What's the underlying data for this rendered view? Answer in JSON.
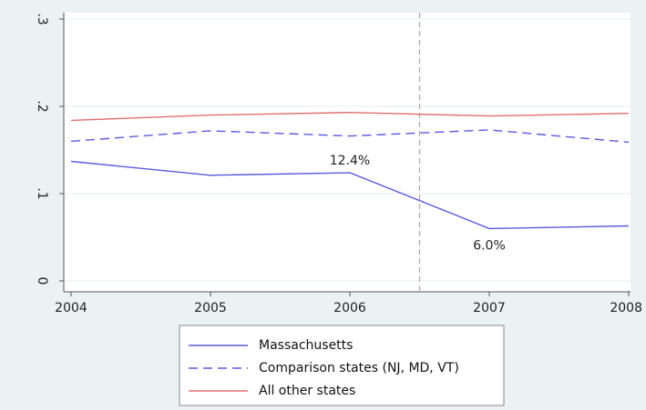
{
  "chart_data": {
    "type": "line",
    "title": "",
    "xlabel": "",
    "ylabel": "",
    "x": [
      2004,
      2005,
      2006,
      2007,
      2008
    ],
    "xlim": [
      2004,
      2008
    ],
    "ylim": [
      0,
      0.3
    ],
    "x_ticks": [
      "2004",
      "2005",
      "2006",
      "2007",
      "2008"
    ],
    "y_ticks": [
      {
        "value": 0,
        "label": "0"
      },
      {
        "value": 0.1,
        "label": ".1"
      },
      {
        "value": 0.2,
        "label": ".2"
      },
      {
        "value": 0.3,
        "label": ".3"
      }
    ],
    "grid": "horizontal",
    "reference_line": {
      "x": 2006.5,
      "style": "dashed"
    },
    "series": [
      {
        "name": "Massachusetts",
        "values": [
          0.137,
          0.121,
          0.124,
          0.06,
          0.063
        ],
        "color": "#5a5adf",
        "style": "solid"
      },
      {
        "name": "Comparison states (NJ, MD, VT)",
        "values": [
          0.16,
          0.172,
          0.166,
          0.173,
          0.159
        ],
        "color": "#5a5adf",
        "style": "dashed"
      },
      {
        "name": "All other states",
        "values": [
          0.184,
          0.19,
          0.193,
          0.189,
          0.192
        ],
        "color": "#e07070",
        "style": "solid"
      }
    ],
    "annotations": [
      {
        "text": "12.4%",
        "x": 2006,
        "y": 0.124
      },
      {
        "text": "6.0%",
        "x": 2007,
        "y": 0.06
      }
    ],
    "legend_position": "bottom"
  },
  "colors": {
    "outer_background": "#eaf2f3",
    "plot_background": "#ffffff",
    "grid": "#e6eced",
    "axis": "#555555",
    "reference_line": "#aaaaaa"
  }
}
